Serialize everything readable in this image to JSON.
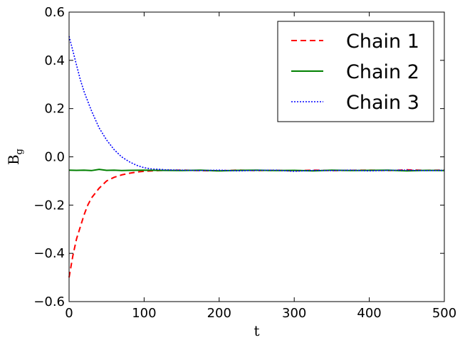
{
  "chart_data": {
    "type": "line",
    "xlabel": "t",
    "ylabel_main": "B",
    "ylabel_sub": "g",
    "xlim": [
      0,
      500
    ],
    "ylim": [
      -0.6,
      0.6
    ],
    "xticks": [
      0,
      100,
      200,
      300,
      400,
      500
    ],
    "yticks": [
      -0.6,
      -0.4,
      -0.2,
      0.0,
      0.2,
      0.4,
      0.6
    ],
    "xtick_labels": [
      "0",
      "100",
      "200",
      "300",
      "400",
      "500"
    ],
    "ytick_labels": [
      "−0.6",
      "−0.4",
      "−0.2",
      "0.0",
      "0.2",
      "0.4",
      "0.6"
    ],
    "grid": false,
    "legend_position": "top-right",
    "series": [
      {
        "name": "Chain 1",
        "color": "#ff0000",
        "style": "dashed",
        "x": [
          0,
          5,
          10,
          15,
          20,
          25,
          30,
          40,
          50,
          60,
          70,
          80,
          90,
          100,
          110,
          120,
          130,
          150,
          175,
          200,
          225,
          250,
          275,
          300,
          325,
          350,
          375,
          400,
          425,
          450,
          475,
          500
        ],
        "y": [
          -0.5,
          -0.41,
          -0.34,
          -0.29,
          -0.24,
          -0.2,
          -0.17,
          -0.13,
          -0.1,
          -0.085,
          -0.075,
          -0.068,
          -0.063,
          -0.06,
          -0.058,
          -0.057,
          -0.056,
          -0.055,
          -0.057,
          -0.058,
          -0.055,
          -0.057,
          -0.056,
          -0.058,
          -0.055,
          -0.057,
          -0.056,
          -0.055,
          -0.057,
          -0.054,
          -0.056,
          -0.055
        ]
      },
      {
        "name": "Chain 2",
        "color": "#008000",
        "style": "solid",
        "x": [
          0,
          10,
          20,
          30,
          40,
          50,
          60,
          70,
          80,
          100,
          120,
          150,
          175,
          200,
          225,
          250,
          275,
          300,
          325,
          350,
          375,
          400,
          425,
          450,
          475,
          500
        ],
        "y": [
          -0.055,
          -0.056,
          -0.055,
          -0.057,
          -0.052,
          -0.056,
          -0.055,
          -0.057,
          -0.056,
          -0.055,
          -0.056,
          -0.057,
          -0.055,
          -0.058,
          -0.056,
          -0.055,
          -0.057,
          -0.056,
          -0.058,
          -0.055,
          -0.057,
          -0.056,
          -0.055,
          -0.058,
          -0.056,
          -0.057
        ]
      },
      {
        "name": "Chain 3",
        "color": "#0000ff",
        "style": "dotted",
        "x": [
          0,
          5,
          10,
          15,
          20,
          25,
          30,
          40,
          50,
          60,
          70,
          80,
          90,
          100,
          110,
          120,
          130,
          150,
          175,
          200,
          225,
          250,
          275,
          300,
          325,
          350,
          375,
          400,
          425,
          450,
          475,
          500
        ],
        "y": [
          0.5,
          0.44,
          0.38,
          0.32,
          0.27,
          0.23,
          0.19,
          0.12,
          0.07,
          0.03,
          0.0,
          -0.02,
          -0.035,
          -0.045,
          -0.05,
          -0.052,
          -0.054,
          -0.055,
          -0.057,
          -0.055,
          -0.058,
          -0.056,
          -0.055,
          -0.06,
          -0.056,
          -0.057,
          -0.055,
          -0.058,
          -0.056,
          -0.055,
          -0.057,
          -0.056
        ]
      }
    ]
  }
}
